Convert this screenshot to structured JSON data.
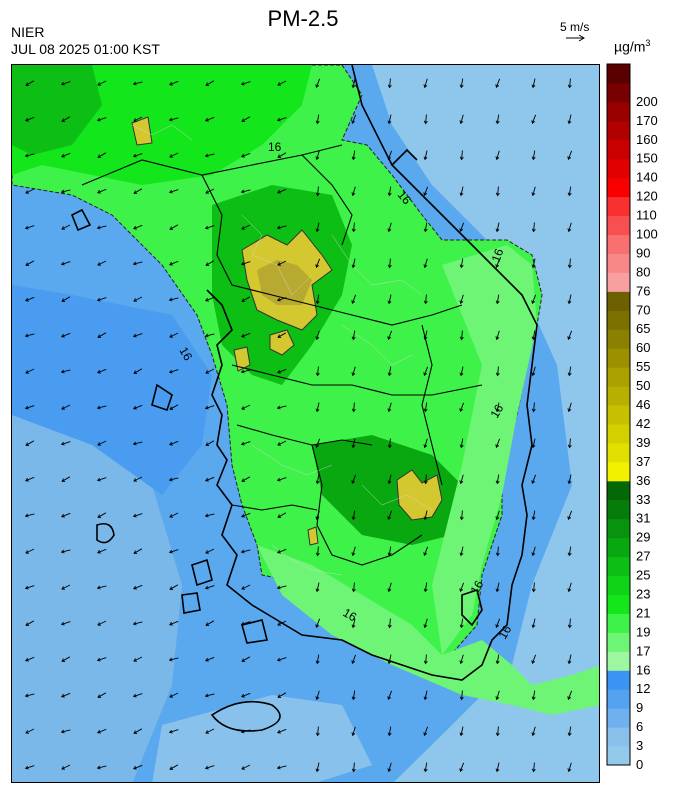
{
  "header": {
    "title": "PM-2.5",
    "organization": "NIER",
    "timestamp": "JUL 08 2025 01:00 KST",
    "wind_reference_label": "5 m/s",
    "unit_base": "µg/m",
    "unit_exp": "3"
  },
  "map": {
    "contour_label": "16"
  },
  "colorbar": [
    {
      "value": "0",
      "color": "#93c9e9"
    },
    {
      "value": "3",
      "color": "#8ac1ea"
    },
    {
      "value": "6",
      "color": "#6fb0ee"
    },
    {
      "value": "9",
      "color": "#55a3f0"
    },
    {
      "value": "12",
      "color": "#3a95f2"
    },
    {
      "value": "16",
      "color": "#9cf7a0"
    },
    {
      "value": "17",
      "color": "#6ef576"
    },
    {
      "value": "19",
      "color": "#3ef24a"
    },
    {
      "value": "21",
      "color": "#14e61c"
    },
    {
      "value": "23",
      "color": "#10d318"
    },
    {
      "value": "25",
      "color": "#0dbe14"
    },
    {
      "value": "27",
      "color": "#0aa810"
    },
    {
      "value": "29",
      "color": "#08920d"
    },
    {
      "value": "31",
      "color": "#067d0a"
    },
    {
      "value": "33",
      "color": "#046807"
    },
    {
      "value": "36",
      "color": "#f2f200"
    },
    {
      "value": "37",
      "color": "#e2e000"
    },
    {
      "value": "39",
      "color": "#d4d000"
    },
    {
      "value": "42",
      "color": "#c6c000"
    },
    {
      "value": "46",
      "color": "#b8b000"
    },
    {
      "value": "50",
      "color": "#aaa000"
    },
    {
      "value": "55",
      "color": "#9a9000"
    },
    {
      "value": "60",
      "color": "#8c8000"
    },
    {
      "value": "65",
      "color": "#7c7000"
    },
    {
      "value": "70",
      "color": "#6c6000"
    },
    {
      "value": "76",
      "color": "#f8a0a0"
    },
    {
      "value": "80",
      "color": "#f88888"
    },
    {
      "value": "90",
      "color": "#f87070"
    },
    {
      "value": "100",
      "color": "#f85050"
    },
    {
      "value": "110",
      "color": "#f83030"
    },
    {
      "value": "120",
      "color": "#f80000"
    },
    {
      "value": "140",
      "color": "#e00000"
    },
    {
      "value": "150",
      "color": "#c80000"
    },
    {
      "value": "160",
      "color": "#b00000"
    },
    {
      "value": "170",
      "color": "#980000"
    },
    {
      "value": "200",
      "color": "#780000"
    },
    {
      "value": "",
      "color": "#5a0000"
    }
  ]
}
